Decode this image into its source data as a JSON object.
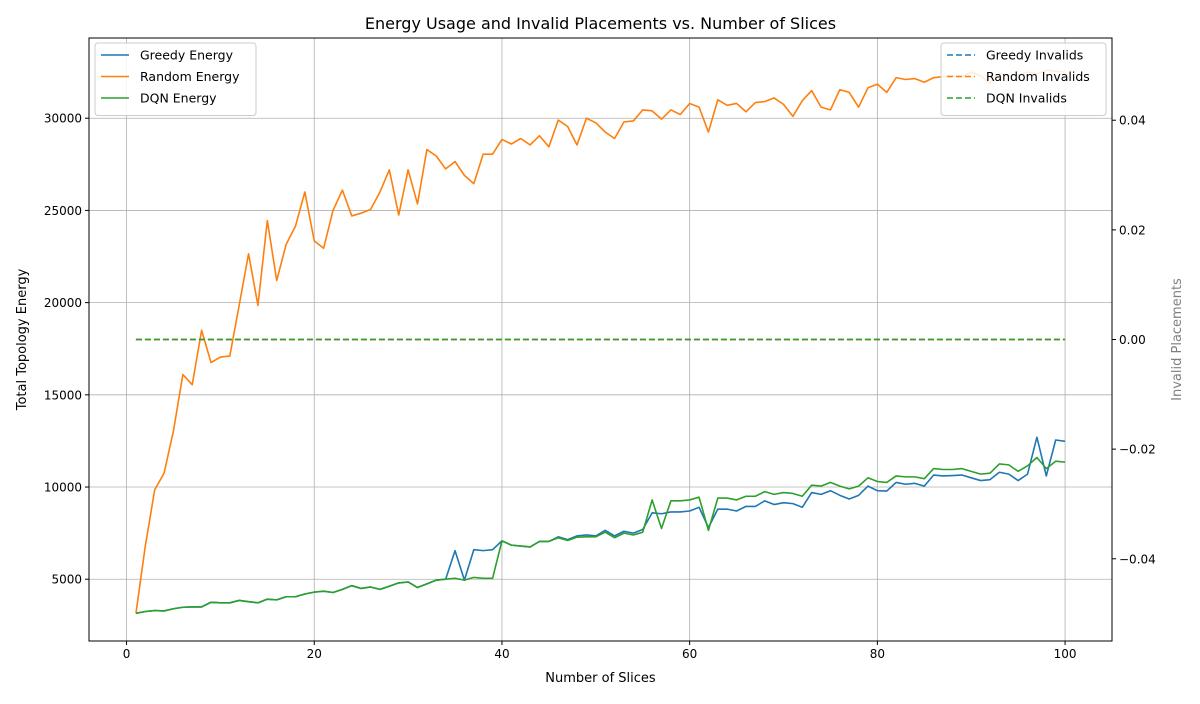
{
  "chart_data": {
    "type": "line",
    "title": "Energy Usage and Invalid Placements vs. Number of Slices",
    "xlabel": "Number of Slices",
    "ylabel": "Total Topology Energy",
    "y2label": "Invalid Placements",
    "xlim": [
      -4,
      105
    ],
    "ylim": [
      1650,
      34350
    ],
    "y2lim": [
      -0.055,
      0.055
    ],
    "xticks": [
      0,
      20,
      40,
      60,
      80,
      100
    ],
    "yticks": [
      5000,
      10000,
      15000,
      20000,
      25000,
      30000
    ],
    "y2ticks": [
      -0.04,
      -0.02,
      0.0,
      0.02,
      0.04
    ],
    "y2ticklabels": [
      "−0.04",
      "−0.02",
      "0.00",
      "0.02",
      "0.04"
    ],
    "grid": true,
    "legend_left_placement": "top-left",
    "legend_right_placement": "top-right",
    "x": [
      1,
      2,
      3,
      4,
      5,
      6,
      7,
      8,
      9,
      10,
      11,
      12,
      13,
      14,
      15,
      16,
      17,
      18,
      19,
      20,
      21,
      22,
      23,
      24,
      25,
      26,
      27,
      28,
      29,
      30,
      31,
      32,
      33,
      34,
      35,
      36,
      37,
      38,
      39,
      40,
      41,
      42,
      43,
      44,
      45,
      46,
      47,
      48,
      49,
      50,
      51,
      52,
      53,
      54,
      55,
      56,
      57,
      58,
      59,
      60,
      61,
      62,
      63,
      64,
      65,
      66,
      67,
      68,
      69,
      70,
      71,
      72,
      73,
      74,
      75,
      76,
      77,
      78,
      79,
      80,
      81,
      82,
      83,
      84,
      85,
      86,
      87,
      88,
      89,
      90,
      91,
      92,
      93,
      94,
      95,
      96,
      97,
      98,
      99,
      100
    ],
    "series": [
      {
        "name": "Greedy Energy",
        "axis": "left",
        "color": "#1f77b4",
        "dash": "solid",
        "values": [
          3150,
          3250,
          3300,
          3280,
          3400,
          3480,
          3500,
          3500,
          3750,
          3720,
          3720,
          3850,
          3780,
          3720,
          3920,
          3880,
          4050,
          4050,
          4200,
          4300,
          4350,
          4280,
          4450,
          4650,
          4500,
          4580,
          4450,
          4620,
          4800,
          4850,
          4550,
          4750,
          4950,
          5000,
          6550,
          4950,
          6600,
          6550,
          6600,
          7080,
          6850,
          6800,
          6750,
          7050,
          7050,
          7300,
          7150,
          7350,
          7400,
          7350,
          7650,
          7350,
          7600,
          7500,
          7700,
          8600,
          8550,
          8650,
          8650,
          8700,
          8900,
          7800,
          8800,
          8800,
          8700,
          8950,
          8950,
          9250,
          9050,
          9150,
          9100,
          8900,
          9700,
          9600,
          9800,
          9550,
          9350,
          9550,
          10050,
          9800,
          9780,
          10250,
          10150,
          10200,
          10050,
          10650,
          10600,
          10620,
          10650,
          10500,
          10350,
          10400,
          10800,
          10700,
          10350,
          10700,
          12700,
          10600,
          12550,
          12480
        ]
      },
      {
        "name": "Random Energy",
        "axis": "left",
        "color": "#ff7f0e",
        "dash": "solid",
        "values": [
          3150,
          6800,
          9850,
          10750,
          13050,
          16100,
          15550,
          18500,
          16750,
          17050,
          17100,
          19850,
          22650,
          19850,
          24450,
          21200,
          23150,
          24150,
          26000,
          23350,
          22950,
          25000,
          26100,
          24700,
          24850,
          25050,
          26000,
          27200,
          24750,
          27200,
          25350,
          28300,
          27950,
          27250,
          27650,
          26900,
          26450,
          28050,
          28050,
          28850,
          28600,
          28900,
          28550,
          29050,
          28450,
          29900,
          29550,
          28550,
          30000,
          29750,
          29250,
          28900,
          29800,
          29850,
          30450,
          30400,
          29950,
          30450,
          30200,
          30800,
          30600,
          29250,
          31000,
          30700,
          30800,
          30350,
          30850,
          30900,
          31100,
          30750,
          30100,
          30950,
          31500,
          30600,
          30450,
          31550,
          31400,
          30600,
          31650,
          31850,
          31400,
          32200,
          32100,
          32150,
          31950,
          32200,
          32250,
          32300,
          32250,
          32500,
          32300,
          31900,
          32450,
          32300,
          32350,
          32500,
          32400,
          32600,
          32550,
          32500
        ]
      },
      {
        "name": "DQN Energy",
        "axis": "left",
        "color": "#2ca02c",
        "dash": "solid",
        "values": [
          3150,
          3250,
          3300,
          3280,
          3400,
          3480,
          3500,
          3500,
          3750,
          3720,
          3720,
          3850,
          3780,
          3720,
          3920,
          3880,
          4050,
          4050,
          4200,
          4300,
          4350,
          4280,
          4450,
          4650,
          4500,
          4580,
          4450,
          4620,
          4800,
          4850,
          4550,
          4750,
          4950,
          5000,
          5050,
          4950,
          5100,
          5050,
          5050,
          7080,
          6850,
          6800,
          6750,
          7050,
          7050,
          7250,
          7100,
          7280,
          7300,
          7300,
          7550,
          7250,
          7500,
          7400,
          7550,
          9300,
          7750,
          9250,
          9250,
          9300,
          9450,
          7650,
          9400,
          9400,
          9300,
          9500,
          9500,
          9750,
          9600,
          9700,
          9650,
          9500,
          10100,
          10050,
          10250,
          10050,
          9900,
          10050,
          10500,
          10300,
          10250,
          10600,
          10550,
          10550,
          10450,
          11000,
          10950,
          10950,
          11000,
          10850,
          10700,
          10750,
          11250,
          11200,
          10850,
          11150,
          11600,
          11000,
          11400,
          11350
        ]
      },
      {
        "name": "Greedy Invalids",
        "axis": "right",
        "color": "#1f77b4",
        "dash": "dashed",
        "values": [
          0,
          0,
          0,
          0,
          0,
          0,
          0,
          0,
          0,
          0,
          0,
          0,
          0,
          0,
          0,
          0,
          0,
          0,
          0,
          0,
          0,
          0,
          0,
          0,
          0,
          0,
          0,
          0,
          0,
          0,
          0,
          0,
          0,
          0,
          0,
          0,
          0,
          0,
          0,
          0,
          0,
          0,
          0,
          0,
          0,
          0,
          0,
          0,
          0,
          0,
          0,
          0,
          0,
          0,
          0,
          0,
          0,
          0,
          0,
          0,
          0,
          0,
          0,
          0,
          0,
          0,
          0,
          0,
          0,
          0,
          0,
          0,
          0,
          0,
          0,
          0,
          0,
          0,
          0,
          0,
          0,
          0,
          0,
          0,
          0,
          0,
          0,
          0,
          0,
          0,
          0,
          0,
          0,
          0,
          0,
          0,
          0,
          0,
          0,
          0
        ]
      },
      {
        "name": "Random Invalids",
        "axis": "right",
        "color": "#ff7f0e",
        "dash": "dashed",
        "values": [
          0,
          0,
          0,
          0,
          0,
          0,
          0,
          0,
          0,
          0,
          0,
          0,
          0,
          0,
          0,
          0,
          0,
          0,
          0,
          0,
          0,
          0,
          0,
          0,
          0,
          0,
          0,
          0,
          0,
          0,
          0,
          0,
          0,
          0,
          0,
          0,
          0,
          0,
          0,
          0,
          0,
          0,
          0,
          0,
          0,
          0,
          0,
          0,
          0,
          0,
          0,
          0,
          0,
          0,
          0,
          0,
          0,
          0,
          0,
          0,
          0,
          0,
          0,
          0,
          0,
          0,
          0,
          0,
          0,
          0,
          0,
          0,
          0,
          0,
          0,
          0,
          0,
          0,
          0,
          0,
          0,
          0,
          0,
          0,
          0,
          0,
          0,
          0,
          0,
          0,
          0,
          0,
          0,
          0,
          0,
          0,
          0,
          0,
          0,
          0
        ]
      },
      {
        "name": "DQN Invalids",
        "axis": "right",
        "color": "#2ca02c",
        "dash": "dashed",
        "values": [
          0,
          0,
          0,
          0,
          0,
          0,
          0,
          0,
          0,
          0,
          0,
          0,
          0,
          0,
          0,
          0,
          0,
          0,
          0,
          0,
          0,
          0,
          0,
          0,
          0,
          0,
          0,
          0,
          0,
          0,
          0,
          0,
          0,
          0,
          0,
          0,
          0,
          0,
          0,
          0,
          0,
          0,
          0,
          0,
          0,
          0,
          0,
          0,
          0,
          0,
          0,
          0,
          0,
          0,
          0,
          0,
          0,
          0,
          0,
          0,
          0,
          0,
          0,
          0,
          0,
          0,
          0,
          0,
          0,
          0,
          0,
          0,
          0,
          0,
          0,
          0,
          0,
          0,
          0,
          0,
          0,
          0,
          0,
          0,
          0,
          0,
          0,
          0,
          0,
          0,
          0,
          0,
          0,
          0,
          0,
          0,
          0,
          0,
          0,
          0
        ]
      }
    ]
  }
}
